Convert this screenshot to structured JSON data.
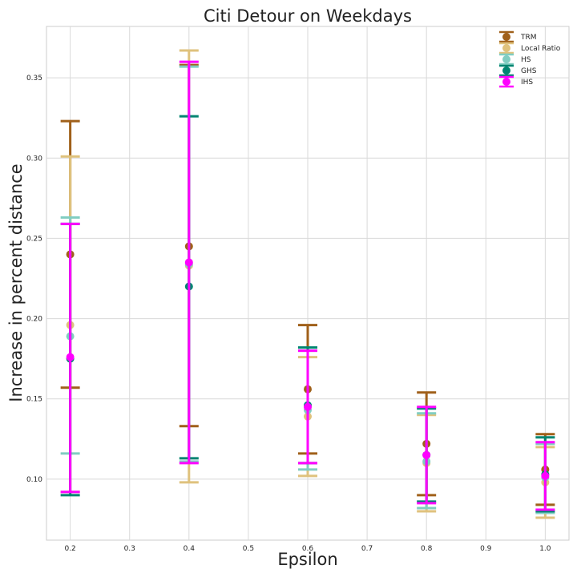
{
  "chart_data": {
    "type": "scatter",
    "title": "Citi Detour on Weekdays",
    "xlabel": "Epsilon",
    "ylabel": "Increase in percent distance",
    "xlim": [
      0.16,
      1.04
    ],
    "ylim": [
      0.062,
      0.382
    ],
    "xticks": [
      "0.2",
      "0.3",
      "0.4",
      "0.5",
      "0.6",
      "0.7",
      "0.8",
      "0.9",
      "1.0"
    ],
    "yticks": [
      "0.10",
      "0.15",
      "0.20",
      "0.25",
      "0.30",
      "0.35"
    ],
    "grid": true,
    "legend_position": "top-right",
    "x": [
      0.2,
      0.4,
      0.6,
      0.8,
      1.0
    ],
    "series": [
      {
        "name": "TRM",
        "color": "#a0601a",
        "values": [
          0.24,
          0.245,
          0.156,
          0.122,
          0.106
        ],
        "lower": [
          0.157,
          0.133,
          0.116,
          0.09,
          0.084
        ],
        "upper": [
          0.323,
          0.358,
          0.196,
          0.154,
          0.128
        ]
      },
      {
        "name": "Local Ratio",
        "color": "#dfc27d",
        "values": [
          0.196,
          0.233,
          0.139,
          0.11,
          0.098
        ],
        "lower": [
          0.092,
          0.098,
          0.102,
          0.08,
          0.076
        ],
        "upper": [
          0.301,
          0.367,
          0.176,
          0.14,
          0.12
        ]
      },
      {
        "name": "HS",
        "color": "#80cdc1",
        "values": [
          0.189,
          0.234,
          0.143,
          0.111,
          0.101
        ],
        "lower": [
          0.116,
          0.111,
          0.106,
          0.082,
          0.079
        ],
        "upper": [
          0.263,
          0.357,
          0.18,
          0.141,
          0.122
        ]
      },
      {
        "name": "GHS",
        "color": "#018571",
        "values": [
          0.175,
          0.22,
          0.146,
          0.115,
          0.103
        ],
        "lower": [
          0.09,
          0.113,
          0.11,
          0.086,
          0.08
        ],
        "upper": [
          0.259,
          0.326,
          0.182,
          0.144,
          0.126
        ]
      },
      {
        "name": "IHS",
        "color": "#ff00ff",
        "values": [
          0.176,
          0.235,
          0.145,
          0.115,
          0.102
        ],
        "lower": [
          0.092,
          0.11,
          0.11,
          0.085,
          0.081
        ],
        "upper": [
          0.259,
          0.36,
          0.18,
          0.145,
          0.123
        ]
      }
    ]
  }
}
